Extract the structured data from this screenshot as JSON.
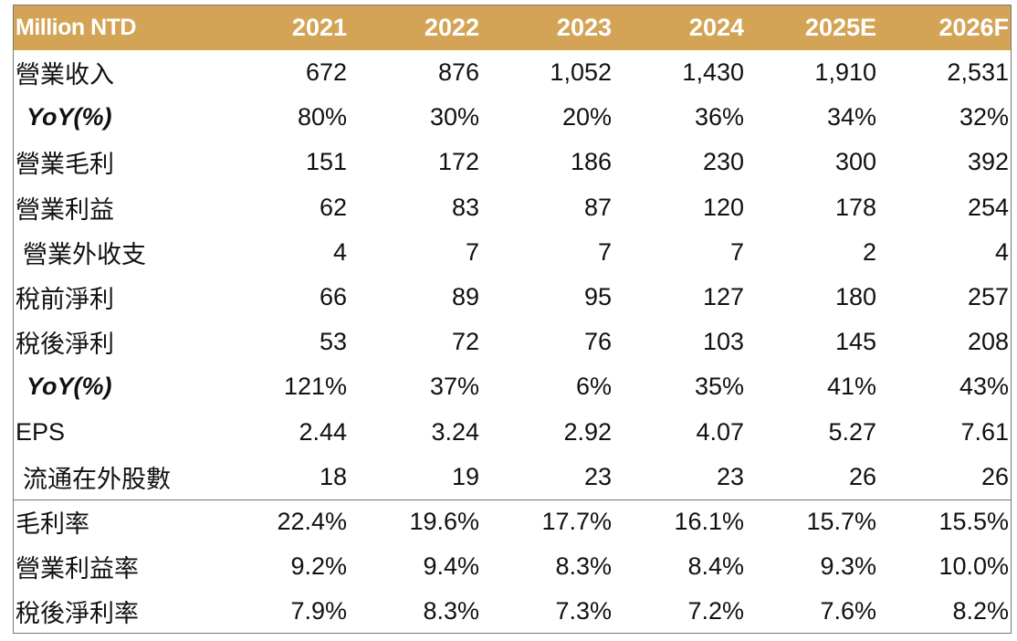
{
  "table": {
    "header": {
      "label": "Million NTD",
      "years": [
        "2021",
        "2022",
        "2023",
        "2024",
        "2025E",
        "2026F"
      ]
    },
    "rows": [
      {
        "label": "營業收入",
        "style": "normal",
        "values": [
          "672",
          "876",
          "1,052",
          "1,430",
          "1,910",
          "2,531"
        ]
      },
      {
        "label": "YoY(%)",
        "style": "italic",
        "values": [
          "80%",
          "30%",
          "20%",
          "36%",
          "34%",
          "32%"
        ]
      },
      {
        "label": "營業毛利",
        "style": "normal",
        "values": [
          "151",
          "172",
          "186",
          "230",
          "300",
          "392"
        ]
      },
      {
        "label": "營業利益",
        "style": "normal",
        "values": [
          "62",
          "83",
          "87",
          "120",
          "178",
          "254"
        ]
      },
      {
        "label": "營業外收支",
        "style": "indent",
        "values": [
          "4",
          "7",
          "7",
          "7",
          "2",
          "4"
        ]
      },
      {
        "label": "稅前淨利",
        "style": "normal",
        "values": [
          "66",
          "89",
          "95",
          "127",
          "180",
          "257"
        ]
      },
      {
        "label": "稅後淨利",
        "style": "normal",
        "values": [
          "53",
          "72",
          "76",
          "103",
          "145",
          "208"
        ]
      },
      {
        "label": "YoY(%)",
        "style": "italic",
        "values": [
          "121%",
          "37%",
          "6%",
          "35%",
          "41%",
          "43%"
        ]
      },
      {
        "label": "EPS",
        "style": "normal",
        "values": [
          "2.44",
          "3.24",
          "2.92",
          "4.07",
          "5.27",
          "7.61"
        ]
      },
      {
        "label": "流通在外股數",
        "style": "indent",
        "values": [
          "18",
          "19",
          "23",
          "23",
          "26",
          "26"
        ]
      },
      {
        "label": "毛利率",
        "style": "normal",
        "divider": true,
        "values": [
          "22.4%",
          "19.6%",
          "17.7%",
          "16.1%",
          "15.7%",
          "15.5%"
        ]
      },
      {
        "label": "營業利益率",
        "style": "normal",
        "values": [
          "9.2%",
          "9.4%",
          "8.3%",
          "8.4%",
          "9.3%",
          "10.0%"
        ]
      },
      {
        "label": "稅後淨利率",
        "style": "normal",
        "values": [
          "7.9%",
          "8.3%",
          "7.3%",
          "7.2%",
          "7.6%",
          "8.2%"
        ]
      }
    ]
  },
  "colors": {
    "header_bg": "#d4a456",
    "header_text": "#ffffff",
    "border": "#777777"
  }
}
